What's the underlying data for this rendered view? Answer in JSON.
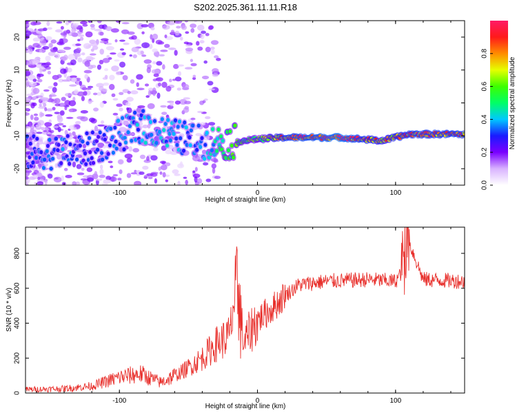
{
  "title": "S202.2025.361.11.11.R18",
  "chart_data": [
    {
      "type": "heatmap",
      "xlabel": "Height of straight line (km)",
      "ylabel": "Frequency (Hz)",
      "xlim": [
        -168,
        150
      ],
      "ylim": [
        -25,
        25
      ],
      "xticks": [
        -100,
        0,
        100
      ],
      "yticks": [
        -20,
        -10,
        0,
        10,
        20
      ],
      "colorbar": {
        "label": "Normalized spectral amplitude",
        "range": [
          0,
          1
        ],
        "ticks": [
          "0.0",
          "0.2",
          "0.4",
          "0.6",
          "0.8"
        ],
        "tick_values": [
          0.0,
          0.2,
          0.4,
          0.6,
          0.8
        ]
      },
      "ridge": [
        {
          "x": -168,
          "freq": -15,
          "amp": 0.3
        },
        {
          "x": -140,
          "freq": -15,
          "amp": 0.35
        },
        {
          "x": -120,
          "freq": -14,
          "amp": 0.3
        },
        {
          "x": -100,
          "freq": -10,
          "amp": 0.35
        },
        {
          "x": -85,
          "freq": -7,
          "amp": 0.4
        },
        {
          "x": -60,
          "freq": -10,
          "amp": 0.4
        },
        {
          "x": -40,
          "freq": -12,
          "amp": 0.35
        },
        {
          "x": -20,
          "freq": -12,
          "amp": 0.6
        },
        {
          "x": 0,
          "freq": -11,
          "amp": 0.6
        },
        {
          "x": 20,
          "freq": -10.5,
          "amp": 0.9
        },
        {
          "x": 60,
          "freq": -10.5,
          "amp": 1.0
        },
        {
          "x": 90,
          "freq": -11.5,
          "amp": 0.8
        },
        {
          "x": 110,
          "freq": -9.5,
          "amp": 0.9
        },
        {
          "x": 150,
          "freq": -9.5,
          "amp": 0.9
        }
      ]
    },
    {
      "type": "line",
      "xlabel": "Height of straight line (km)",
      "ylabel": "SNR (10 * v/v)",
      "xlim": [
        -168,
        150
      ],
      "ylim": [
        0,
        950
      ],
      "xticks": [
        -100,
        0,
        100
      ],
      "yticks": [
        0,
        200,
        400,
        600,
        800
      ],
      "color": "#e8302c",
      "series": [
        {
          "name": "SNR",
          "x": [
            -168,
            -140,
            -120,
            -100,
            -85,
            -70,
            -55,
            -40,
            -30,
            -20,
            -15,
            -10,
            -5,
            0,
            10,
            20,
            30,
            50,
            80,
            100,
            105,
            108,
            120,
            150
          ],
          "y": [
            20,
            25,
            40,
            90,
            110,
            60,
            120,
            200,
            280,
            330,
            650,
            280,
            360,
            420,
            480,
            560,
            620,
            640,
            650,
            640,
            700,
            900,
            650,
            640
          ]
        }
      ]
    }
  ]
}
